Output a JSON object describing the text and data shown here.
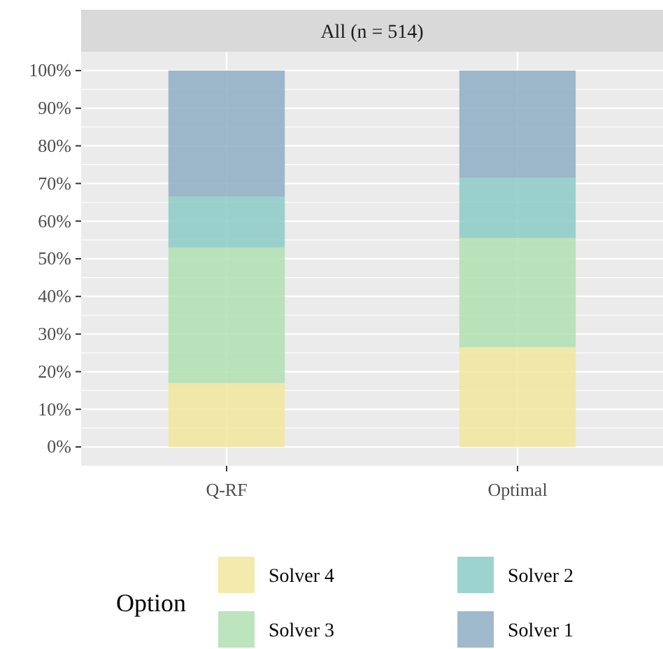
{
  "chart_data": {
    "type": "bar",
    "title": "All (n = 514)",
    "categories": [
      "Q-RF",
      "Optimal"
    ],
    "stacked": true,
    "legend": "bottom",
    "legend_title": "Option",
    "grid": true,
    "ylim": [
      -5,
      105
    ],
    "yticks": [
      {
        "value": 0,
        "label": "0%"
      },
      {
        "value": 10,
        "label": "10%"
      },
      {
        "value": 20,
        "label": "20%"
      },
      {
        "value": 30,
        "label": "30%"
      },
      {
        "value": 40,
        "label": "40%"
      },
      {
        "value": 50,
        "label": "50%"
      },
      {
        "value": 60,
        "label": "60%"
      },
      {
        "value": 70,
        "label": "70%"
      },
      {
        "value": 80,
        "label": "80%"
      },
      {
        "value": 90,
        "label": "90%"
      },
      {
        "value": 100,
        "label": "100%"
      }
    ],
    "series": [
      {
        "name": "Solver 4",
        "color": "#f1e69c",
        "values": [
          17,
          26.5
        ]
      },
      {
        "name": "Solver 3",
        "color": "#b0dfb2",
        "values": [
          36,
          29
        ]
      },
      {
        "name": "Solver 2",
        "color": "#8bcbc7",
        "values": [
          13.5,
          16
        ]
      },
      {
        "name": "Solver 1",
        "color": "#8daec3",
        "values": [
          33.5,
          28.5
        ]
      }
    ]
  }
}
